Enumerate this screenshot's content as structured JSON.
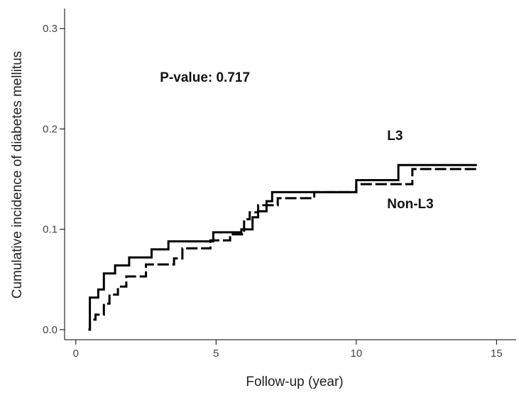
{
  "chart_data": {
    "type": "line",
    "subtype": "step",
    "xlabel": "Follow-up (year)",
    "ylabel": "Cumulative incidence of diabetes mellitus",
    "xlim": [
      -0.4,
      15.7
    ],
    "ylim": [
      -0.01,
      0.32
    ],
    "xticks": [
      0,
      5,
      10,
      15
    ],
    "xtick_labels": [
      "0",
      "5",
      "10",
      "15"
    ],
    "yticks": [
      0.0,
      0.1,
      0.2,
      0.3
    ],
    "ytick_labels": [
      "0.0",
      "0.1",
      "0.2",
      "0.3"
    ],
    "grid": false,
    "annotations": [
      {
        "text": "P-value: 0.717",
        "x": 3.0,
        "y": 0.247
      },
      {
        "text": "L3",
        "x": 11.1,
        "y": 0.189
      },
      {
        "text": "Non-L3",
        "x": 11.1,
        "y": 0.121
      }
    ],
    "series": [
      {
        "name": "L3",
        "style": "solid",
        "color": "#000000",
        "x": [
          0.45,
          0.5,
          0.6,
          0.8,
          1.0,
          1.1,
          1.4,
          1.9,
          2.7,
          3.3,
          4.9,
          5.9,
          6.3,
          6.5,
          6.8,
          7.0,
          8.0,
          9.5,
          10.0,
          11.5,
          14.3
        ],
        "y": [
          0.0,
          0.032,
          0.032,
          0.04,
          0.056,
          0.056,
          0.064,
          0.072,
          0.08,
          0.088,
          0.097,
          0.1,
          0.112,
          0.118,
          0.128,
          0.137,
          0.137,
          0.137,
          0.149,
          0.164,
          0.164
        ]
      },
      {
        "name": "Non-L3",
        "style": "dashed",
        "color": "#000000",
        "x": [
          0.45,
          0.5,
          0.7,
          1.0,
          1.2,
          1.5,
          1.8,
          2.5,
          3.5,
          3.8,
          4.8,
          5.5,
          6.0,
          6.2,
          6.5,
          7.2,
          8.5,
          10.0,
          12.0,
          14.3
        ],
        "y": [
          0.0,
          0.01,
          0.015,
          0.026,
          0.035,
          0.043,
          0.053,
          0.065,
          0.071,
          0.081,
          0.089,
          0.095,
          0.11,
          0.117,
          0.124,
          0.131,
          0.137,
          0.145,
          0.16,
          0.16
        ]
      }
    ]
  }
}
